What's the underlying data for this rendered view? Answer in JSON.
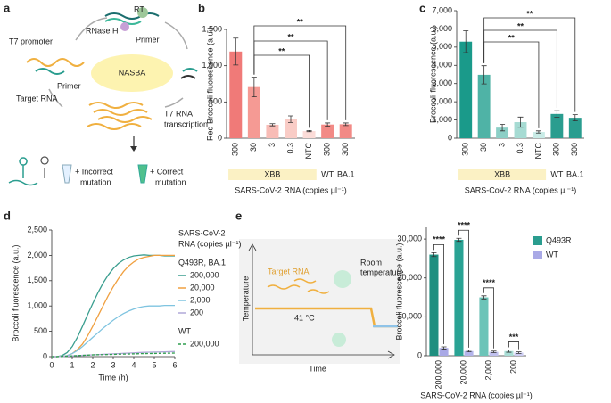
{
  "figure": {
    "letters": [
      "a",
      "b",
      "c",
      "d",
      "e"
    ]
  },
  "diagram_a": {
    "rt": "RT",
    "rnase": "RNase H",
    "primer_top": "Primer",
    "t7_promoter": "T7 promoter",
    "primer_left": "Primer",
    "target": "Target RNA",
    "center": "NASBA",
    "transcription": [
      "T7 RNA",
      "transcription"
    ],
    "incorrect": [
      "+ Incorrect",
      "mutation"
    ],
    "correct": [
      "+ Correct",
      "mutation"
    ]
  },
  "diagram_e": {
    "ylabel": "Temperature",
    "xlabel": "Time",
    "target": "Target RNA",
    "temp": "41 °C",
    "room": [
      "Room",
      "temperature"
    ]
  },
  "chart_data": [
    {
      "type": "bar",
      "ylabel": "Red Broccoli fluorescence (a.u.)",
      "xlabel": "SARS-CoV-2 RNA (copies µl⁻¹)",
      "categories": [
        "300",
        "30",
        "3",
        "0.3",
        "NTC",
        "300",
        "300"
      ],
      "group_labels": [
        "XBB",
        "WT",
        "BA.1"
      ],
      "values": [
        1195,
        705,
        185,
        262,
        98,
        188,
        192
      ],
      "errors": [
        185,
        135,
        15,
        45,
        8,
        22,
        18
      ],
      "colors": [
        "#f07a78",
        "#f59a94",
        "#f8bcb6",
        "#f9ccc6",
        "#fbdcd8",
        "#f28a86",
        "#f28a86"
      ],
      "ylim": [
        0,
        1500
      ],
      "yticks": [
        0,
        500,
        {
          "value": 1000,
          "label": "1,000"
        },
        {
          "value": 1500,
          "label": "1,500"
        }
      ],
      "annotations": [
        "**",
        "**",
        "**"
      ]
    },
    {
      "type": "bar",
      "ylabel": "Broccoli fluorescence (a.u.)",
      "xlabel": "SARS-CoV-2 RNA (copies µl⁻¹)",
      "categories": [
        "300",
        "30",
        "3",
        "0.3",
        "NTC",
        "300",
        "300"
      ],
      "group_labels": [
        "XBB",
        "WT",
        "BA.1"
      ],
      "values": [
        5300,
        3480,
        580,
        880,
        340,
        1330,
        1120
      ],
      "errors": [
        600,
        500,
        180,
        280,
        60,
        180,
        170
      ],
      "colors": [
        "#1a9a8a",
        "#4fb3a6",
        "#8ccfc6",
        "#a6dbd3",
        "#c9ebe6",
        "#2a9d8f",
        "#2a9d8f"
      ],
      "ylim": [
        0,
        7000
      ],
      "yticks": [
        0,
        {
          "value": 1000,
          "label": "1,000"
        },
        {
          "value": 2000,
          "label": "2,000"
        },
        {
          "value": 3000,
          "label": "3,000"
        },
        {
          "value": 4000,
          "label": "4,000"
        },
        {
          "value": 5000,
          "label": "5,000"
        },
        {
          "value": 6000,
          "label": "6,000"
        },
        {
          "value": 7000,
          "label": "7,000"
        }
      ],
      "annotations": [
        "**",
        "**",
        "**"
      ]
    },
    {
      "type": "line",
      "xlabel": "Time (h)",
      "ylabel": "Broccoli fluorescence (a.u.)",
      "legend_title": [
        "SARS-CoV-2",
        "RNA (copies µl⁻¹)"
      ],
      "legend_groups": [
        "Q493R, BA.1",
        "WT"
      ],
      "x": [
        0,
        0.25,
        0.5,
        0.75,
        1,
        1.25,
        1.5,
        1.75,
        2,
        2.25,
        2.5,
        2.75,
        3,
        3.25,
        3.5,
        3.75,
        4,
        4.25,
        4.5,
        4.75,
        5,
        5.25,
        5.5,
        5.75,
        6
      ],
      "series": [
        {
          "name": "200,000",
          "color": "#3a9e8f",
          "values": [
            0,
            0,
            20,
            80,
            200,
            380,
            600,
            830,
            1050,
            1260,
            1450,
            1610,
            1740,
            1840,
            1910,
            1960,
            1990,
            2000,
            2010,
            2000,
            2000,
            2000,
            1990,
            1990,
            1990
          ]
        },
        {
          "name": "20,000",
          "color": "#f0a040",
          "values": [
            0,
            0,
            5,
            20,
            60,
            140,
            250,
            410,
            600,
            800,
            1000,
            1200,
            1380,
            1540,
            1680,
            1790,
            1870,
            1930,
            1960,
            1980,
            2000,
            2000,
            2000,
            2000,
            2000
          ]
        },
        {
          "name": "2,000",
          "color": "#7fc4e0",
          "values": [
            0,
            0,
            5,
            20,
            60,
            120,
            200,
            290,
            380,
            470,
            560,
            640,
            720,
            790,
            850,
            900,
            940,
            970,
            990,
            1000,
            1000,
            1000,
            1010,
            1010,
            1010
          ]
        },
        {
          "name": "200",
          "color": "#b0a8d8",
          "values": [
            0,
            0,
            5,
            10,
            15,
            20,
            25,
            30,
            35,
            40,
            45,
            50,
            55,
            60,
            65,
            70,
            75,
            80,
            85,
            88,
            90,
            93,
            95,
            98,
            100
          ]
        },
        {
          "name": "200,000",
          "color": "#2e9e4e",
          "line_style": "dashed",
          "values": [
            0,
            0,
            5,
            10,
            15,
            20,
            25,
            30,
            35,
            38,
            40,
            42,
            45,
            48,
            50,
            52,
            55,
            58,
            60,
            62,
            63,
            65,
            67,
            68,
            70
          ]
        }
      ],
      "xlim": [
        0,
        6
      ],
      "xticks": [
        0,
        1,
        2,
        3,
        4,
        5,
        6
      ],
      "ylim": [
        0,
        2500
      ],
      "yticks": [
        0,
        500,
        {
          "value": 1000,
          "label": "1,000"
        },
        {
          "value": 1500,
          "label": "1,500"
        },
        {
          "value": 2000,
          "label": "2,000"
        },
        {
          "value": 2500,
          "label": "2,500"
        }
      ]
    },
    {
      "type": "grouped_bar",
      "xlabel": "SARS-CoV-2 RNA (copies µl⁻¹)",
      "ylabel": "Broccoli fluorescence (a.u.)",
      "categories": [
        "200,000",
        "20,000",
        "2,000",
        "200"
      ],
      "series": [
        {
          "name": "Q493R",
          "color": "#2a9d8f",
          "colors": [
            "#1f8f80",
            "#2aa394",
            "#6cc4b8",
            "#a8ddd5"
          ],
          "values": [
            26000,
            29800,
            15000,
            1200
          ],
          "errors": [
            500,
            400,
            400,
            300
          ]
        },
        {
          "name": "WT",
          "color": "#a9a9e6",
          "colors": [
            "#a9a9e6",
            "#b4b4ea",
            "#c0c0ee",
            "#ccccf2"
          ],
          "values": [
            2000,
            1200,
            1000,
            800
          ],
          "errors": [
            300,
            200,
            200,
            200
          ]
        }
      ],
      "ylim": [
        0,
        33000
      ],
      "yticks": [
        0,
        {
          "value": 10000,
          "label": "10,000"
        },
        {
          "value": 20000,
          "label": "20,000"
        },
        {
          "value": 30000,
          "label": "30,000"
        }
      ],
      "annotations": [
        "****",
        "****",
        "****",
        "***"
      ]
    }
  ]
}
